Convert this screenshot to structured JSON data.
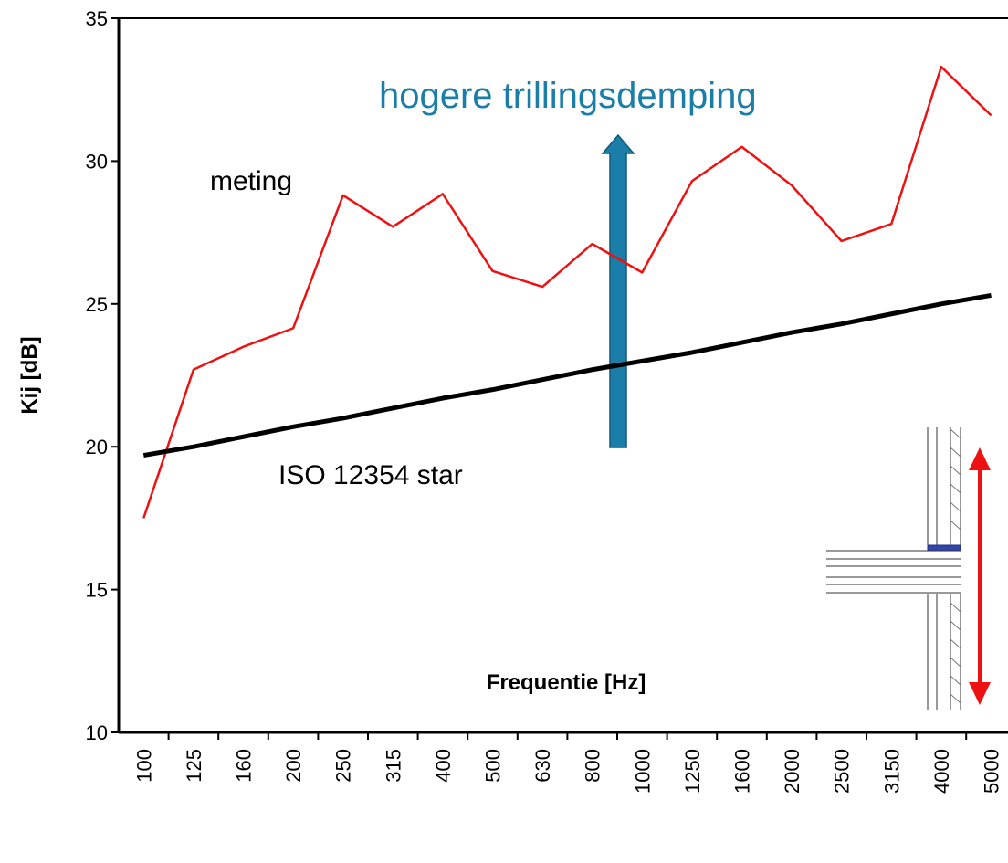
{
  "chart_data": {
    "type": "line",
    "x_label": "Frequentie [Hz]",
    "y_label": "Kij [dB]",
    "categories": [
      "100",
      "125",
      "160",
      "200",
      "250",
      "315",
      "400",
      "500",
      "630",
      "800",
      "1000",
      "1250",
      "1600",
      "2000",
      "2500",
      "3150",
      "4000",
      "5000"
    ],
    "series": [
      {
        "name": "meting",
        "color": "#ee1111",
        "width": 2.5,
        "values": [
          17.5,
          22.7,
          23.5,
          24.15,
          28.8,
          27.7,
          28.85,
          26.15,
          25.6,
          27.1,
          26.1,
          29.3,
          30.5,
          29.15,
          27.2,
          27.8,
          33.3,
          31.6
        ]
      },
      {
        "name": "ISO 12354 star",
        "color": "#000000",
        "width": 5,
        "values": [
          19.7,
          20.0,
          20.35,
          20.7,
          21.0,
          21.35,
          21.7,
          22.0,
          22.35,
          22.7,
          23.0,
          23.3,
          23.65,
          24.0,
          24.3,
          24.65,
          25.0,
          25.3
        ]
      }
    ],
    "annotation": "hogere trillingsdemping",
    "ylim": [
      10,
      35
    ],
    "yticks": [
      10,
      15,
      20,
      25,
      30,
      35
    ]
  }
}
